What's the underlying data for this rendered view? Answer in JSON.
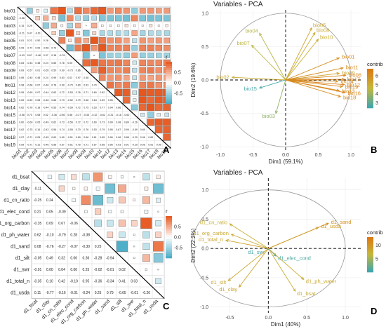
{
  "panels": {
    "A": {
      "label": "A",
      "variables": [
        "bio01",
        "bio02",
        "bio03",
        "bio04",
        "bio05",
        "bio06",
        "bio07",
        "bio08",
        "bio09",
        "bio10",
        "bio11",
        "bio12",
        "bio13",
        "bio14",
        "bio15",
        "bio16",
        "bio17",
        "bio18",
        "bio19"
      ],
      "lower_values": [
        [],
        [
          -0.58
        ],
        [
          0.15,
          0.29
        ],
        [
          -0.21,
          0.47,
          -0.61
        ],
        [
          0.81,
          0.23,
          0.5,
          0.28
        ],
        [
          0.99,
          -0.74,
          0.09,
          -0.56,
          0.73
        ],
        [
          -0.43,
          0.67,
          -0.48,
          0.97,
          0.18,
          -0.76
        ],
        [
          0.84,
          -0.43,
          0.48,
          0.24,
          0.65,
          0.76,
          0.0
        ],
        [
          0.69,
          -0.57,
          0.01,
          -0.65,
          0.5,
          0.99,
          -0.73,
          0.86
        ],
        [
          0.89,
          -0.4,
          0.48,
          0.24,
          0.99,
          0.63,
          0.02,
          0.97,
          0.58
        ],
        [
          0.98,
          -0.68,
          0.07,
          -0.46,
          0.78,
          0.99,
          -0.7,
          0.8,
          0.93,
          0.7
        ],
        [
          0.59,
          -0.69,
          0.07,
          -0.44,
          0.63,
          0.72,
          -0.53,
          0.76,
          0.71,
          0.6,
          0.82
        ],
        [
          0.69,
          -0.69,
          0.08,
          -0.46,
          0.66,
          0.73,
          -0.52,
          0.79,
          0.68,
          0.64,
          0.69,
          0.96
        ],
        [
          0.62,
          -0.76,
          0.18,
          -0.44,
          0.55,
          0.74,
          -0.59,
          0.72,
          0.75,
          0.53,
          0.77,
          0.94,
          0.86
        ],
        [
          -0.58,
          0.7,
          0.08,
          0.52,
          -0.36,
          -0.56,
          0.58,
          -0.27,
          -0.36,
          -0.32,
          -0.62,
          -0.31,
          -0.18,
          -0.62
        ],
        [
          0.6,
          -0.69,
          0.05,
          -0.49,
          0.62,
          0.73,
          -0.56,
          0.72,
          0.72,
          0.6,
          0.73,
          0.99,
          0.98,
          0.89,
          -0.26
        ],
        [
          0.62,
          -0.75,
          0.16,
          -0.43,
          0.56,
          0.74,
          -0.55,
          0.7,
          0.76,
          0.53,
          0.79,
          0.95,
          0.87,
          0.99,
          -0.59,
          0.89
        ],
        [
          0.57,
          -0.71,
          0.05,
          -0.45,
          0.6,
          0.69,
          -0.51,
          0.69,
          0.66,
          0.61,
          0.65,
          0.96,
          0.96,
          0.88,
          -0.2,
          0.96,
          0.89
        ],
        [
          0.59,
          -0.71,
          0.12,
          -0.46,
          0.56,
          0.67,
          -0.51,
          0.75,
          0.71,
          0.57,
          0.68,
          0.96,
          0.93,
          0.91,
          -0.29,
          0.95,
          0.91,
          0.9
        ]
      ],
      "legend": {
        "title": "r",
        "ticks": [
          "0.5",
          "0.0",
          "-0.5"
        ]
      }
    },
    "B": {
      "label": "B",
      "title": "Variables - PCA",
      "xlabel": "Dim1 (59.1%)",
      "ylabel": "Dim2 (19.6%)",
      "x_ticks": [
        "-1.0",
        "-0.5",
        "0.0",
        "0.5",
        "1.0"
      ],
      "y_ticks": [
        "1.0",
        "0.5",
        "0.0",
        "-0.5",
        "-1.0"
      ],
      "legend": {
        "title": "contrib",
        "ticks": [
          "6",
          "5",
          "4",
          "3"
        ],
        "min": 2.4,
        "max": 6.8
      }
    },
    "C": {
      "label": "C",
      "variables": [
        "d1_bsat",
        "d1_clay",
        "d1_cn_ratio",
        "d1_elec_cond",
        "d1_org_carbon",
        "d1_ph_water",
        "d1_sand",
        "d1_silt",
        "d1_swr",
        "d1_total_n",
        "d1_usda"
      ],
      "lower_values": [
        [],
        [
          -0.11
        ],
        [
          -0.25,
          0.24
        ],
        [
          0.21,
          0.05,
          -0.09
        ],
        [
          -0.35,
          0.09,
          0.67,
          -0.06
        ],
        [
          0.62,
          -0.1,
          -0.79,
          0.28,
          -0.38
        ],
        [
          0.08,
          -0.76,
          -0.27,
          -0.07,
          -0.3,
          0.25
        ],
        [
          -0.05,
          0.49,
          0.32,
          0.06,
          0.36,
          -0.28,
          -0.94
        ],
        [
          -0.01,
          0.0,
          0.04,
          0.0,
          0.25,
          -0.02,
          -0.01,
          0.02
        ],
        [
          -0.35,
          0.1,
          0.42,
          -0.1,
          0.95,
          -0.36,
          -0.34,
          0.41,
          0.03
        ],
        [
          0.11,
          -0.77,
          -0.16,
          -0.01,
          -0.24,
          0.25,
          0.79,
          -0.65,
          -0.01,
          -0.26
        ]
      ],
      "legend": {
        "title": "r",
        "ticks": [
          "0.5",
          "0.0",
          "-0.5"
        ]
      }
    },
    "D": {
      "label": "D",
      "title": "Variables - PCA",
      "xlabel": "Dim1 (40%)",
      "ylabel": "Dim2 (22.2%)",
      "x_ticks": [
        "-0.5",
        "0.0",
        "0.5",
        "1.0"
      ],
      "y_ticks": [
        "1.0",
        "0.5",
        "0.0",
        "-0.5",
        "-1.0"
      ],
      "legend": {
        "title": "contrib",
        "ticks": [
          "10",
          "5"
        ],
        "min": 0,
        "max": 13
      }
    }
  },
  "chart_data": [
    {
      "type": "heatmap",
      "panel": "A",
      "description_source": "correlation matrix of bioclimatic variables (lower triangle numbers, upper triangle squares)",
      "value_range": [
        -1,
        1
      ]
    },
    {
      "type": "scatter",
      "panel": "B",
      "title": "Variables - PCA",
      "xlabel": "Dim1 (59.1%)",
      "ylabel": "Dim2 (19.6%)",
      "xlim": [
        -1.15,
        1.15
      ],
      "ylim": [
        -1.05,
        1.05
      ],
      "arrows": [
        {
          "name": "bio05",
          "x": 0.4,
          "y": 0.78,
          "contrib": 5.2
        },
        {
          "name": "bio08",
          "x": 0.45,
          "y": 0.71,
          "contrib": 5.0
        },
        {
          "name": "bio10",
          "x": 0.5,
          "y": 0.61,
          "contrib": 5.0
        },
        {
          "name": "bio04",
          "x": -0.4,
          "y": 0.7,
          "contrib": 4.4
        },
        {
          "name": "bio07",
          "x": -0.52,
          "y": 0.52,
          "contrib": 4.5
        },
        {
          "name": "bio01",
          "x": 0.82,
          "y": 0.33,
          "contrib": 6.0
        },
        {
          "name": "bio11",
          "x": 0.88,
          "y": 0.18,
          "contrib": 6.1
        },
        {
          "name": "bio09",
          "x": 0.82,
          "y": 0.1,
          "contrib": 5.4
        },
        {
          "name": "bio06",
          "x": 0.92,
          "y": 0.07,
          "contrib": 6.3
        },
        {
          "name": "bio17",
          "x": 0.9,
          "y": 0.01,
          "contrib": 6.4
        },
        {
          "name": "bio12",
          "x": 0.9,
          "y": -0.07,
          "contrib": 6.5
        },
        {
          "name": "bio14",
          "x": 0.8,
          "y": -0.02,
          "contrib": 6.0
        },
        {
          "name": "bio13",
          "x": 0.82,
          "y": -0.16,
          "contrib": 6.2
        },
        {
          "name": "bio16",
          "x": 0.91,
          "y": -0.19,
          "contrib": 6.3
        },
        {
          "name": "bio18",
          "x": 0.84,
          "y": -0.25,
          "contrib": 6.0
        },
        {
          "name": "bio19",
          "x": 0.87,
          "y": -0.1,
          "contrib": 6.2
        },
        {
          "name": "bio02",
          "x": -0.82,
          "y": 0.04,
          "contrib": 5.0
        },
        {
          "name": "bio15",
          "x": -0.4,
          "y": -0.12,
          "contrib": 2.6
        },
        {
          "name": "bio03",
          "x": -0.15,
          "y": -0.5,
          "contrib": 3.8
        }
      ]
    },
    {
      "type": "heatmap",
      "panel": "C",
      "description_source": "correlation matrix of soil variables (lower triangle numbers, upper triangle squares)",
      "value_range": [
        -1,
        1
      ]
    },
    {
      "type": "scatter",
      "panel": "D",
      "title": "Variables - PCA",
      "xlabel": "Dim1 (40%)",
      "ylabel": "Dim2 (22.2%)",
      "xlim": [
        -0.75,
        1.2
      ],
      "ylim": [
        -1.1,
        1.2
      ],
      "arrows": [
        {
          "name": "d1_sand",
          "x": 0.78,
          "y": 0.43,
          "contrib": 10.5
        },
        {
          "name": "d1_usda",
          "x": 0.65,
          "y": 0.36,
          "contrib": 9.2
        },
        {
          "name": "d1_cn_ratio",
          "x": -0.5,
          "y": 0.42,
          "contrib": 7.5
        },
        {
          "name": "d1_org_carbon",
          "x": -0.48,
          "y": 0.24,
          "contrib": 8.0
        },
        {
          "name": "d1_total_n",
          "x": -0.55,
          "y": 0.14,
          "contrib": 8.5
        },
        {
          "name": "d1_swr",
          "x": -0.02,
          "y": -0.03,
          "contrib": 0.5
        },
        {
          "name": "d1_elec_cond",
          "x": 0.1,
          "y": -0.13,
          "contrib": 1.0
        },
        {
          "name": "d1_silt",
          "x": -0.52,
          "y": -0.55,
          "contrib": 8.0
        },
        {
          "name": "d1_clay",
          "x": -0.38,
          "y": -0.66,
          "contrib": 8.5
        },
        {
          "name": "d1_ph_water",
          "x": 0.46,
          "y": -0.53,
          "contrib": 8.0
        },
        {
          "name": "d1_bsat",
          "x": 0.35,
          "y": -0.73,
          "contrib": 7.5
        }
      ]
    }
  ]
}
